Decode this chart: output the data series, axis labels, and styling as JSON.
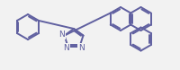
{
  "bg_color": "#f2f2f2",
  "line_color": "#6060a0",
  "line_width": 1.4,
  "text_color": "#6060a0",
  "font_size": 6.5,
  "fig_width": 2.0,
  "fig_height": 0.78,
  "dpi": 100,
  "xlim": [
    0,
    200
  ],
  "ylim": [
    0,
    78
  ]
}
